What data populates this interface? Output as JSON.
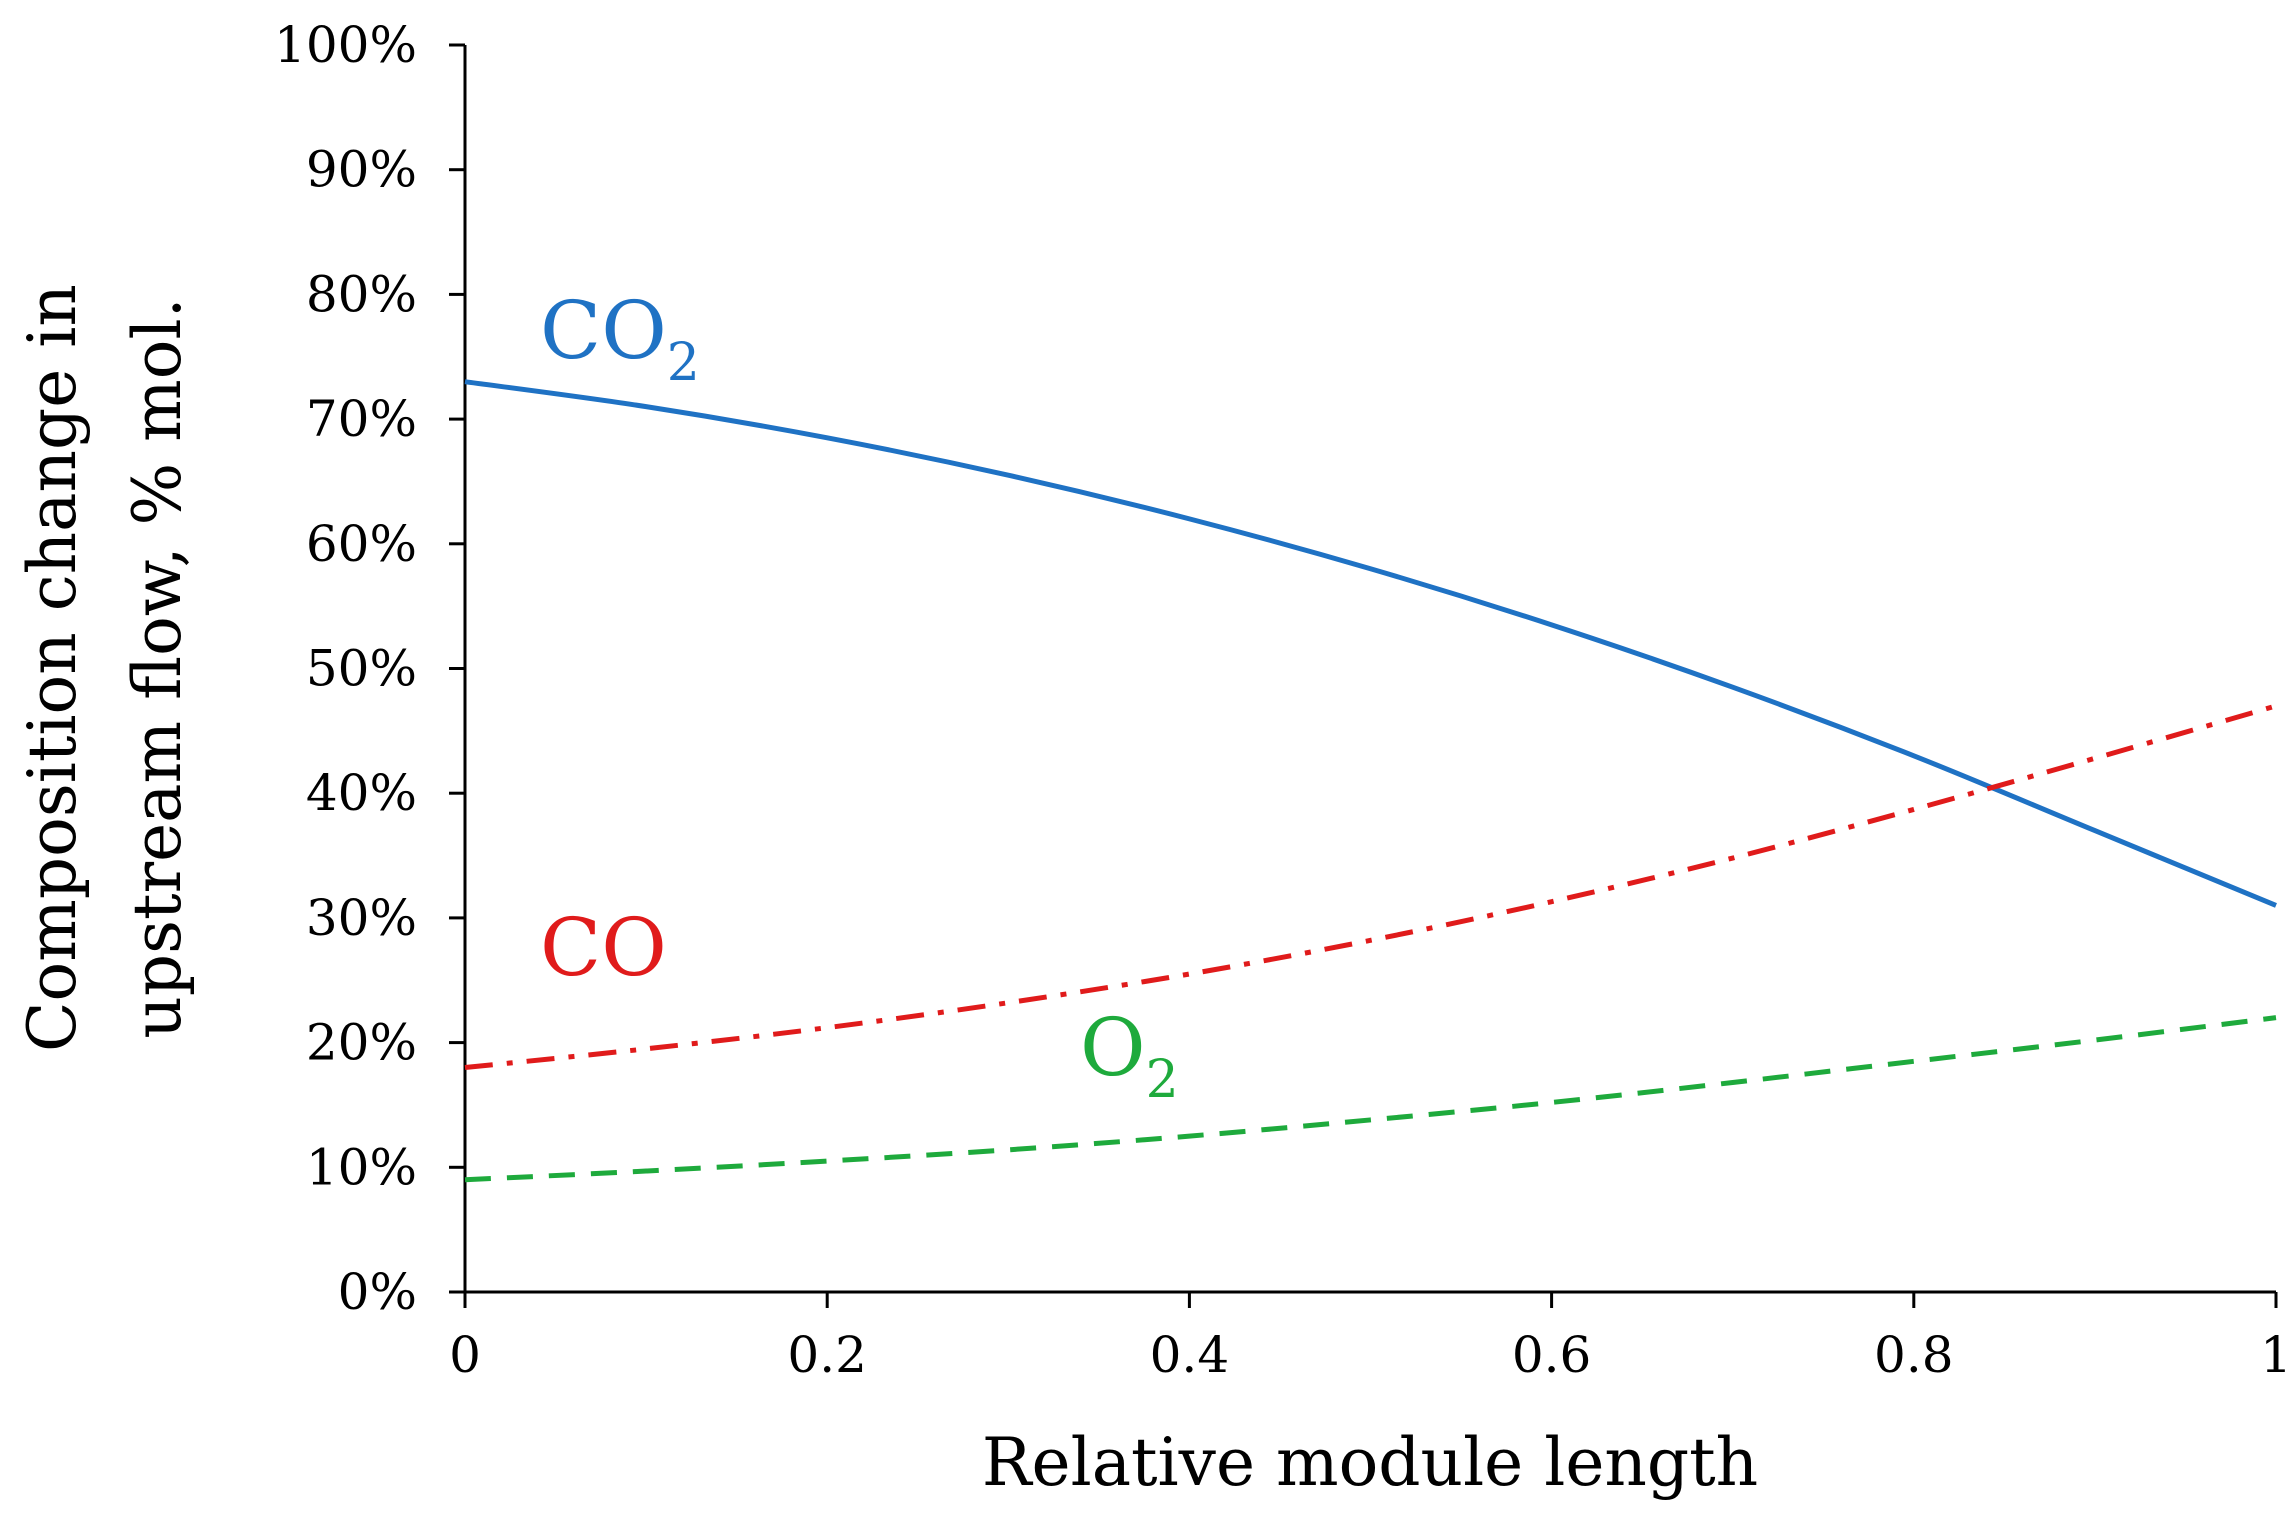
{
  "chart_data": {
    "type": "line",
    "xlabel": "Relative module length",
    "ylabel": [
      "Composition change in",
      "upstream flow, % mol."
    ],
    "xlim": [
      0,
      1
    ],
    "ylim": [
      0,
      1
    ],
    "x_ticks": [
      {
        "value": 0,
        "label": "0"
      },
      {
        "value": 0.2,
        "label": "0.2"
      },
      {
        "value": 0.4,
        "label": "0.4"
      },
      {
        "value": 0.6,
        "label": "0.6"
      },
      {
        "value": 0.8,
        "label": "0.8"
      },
      {
        "value": 1,
        "label": "1"
      }
    ],
    "y_ticks": [
      {
        "value": 0,
        "label": "0%"
      },
      {
        "value": 0.1,
        "label": "10%"
      },
      {
        "value": 0.2,
        "label": "20%"
      },
      {
        "value": 0.3,
        "label": "30%"
      },
      {
        "value": 0.4,
        "label": "40%"
      },
      {
        "value": 0.5,
        "label": "50%"
      },
      {
        "value": 0.6,
        "label": "60%"
      },
      {
        "value": 0.7,
        "label": "70%"
      },
      {
        "value": 0.8,
        "label": "80%"
      },
      {
        "value": 0.9,
        "label": "90%"
      },
      {
        "value": 1,
        "label": "100%"
      }
    ],
    "grid": false,
    "legend": "none",
    "x": [
      0,
      0.1,
      0.2,
      0.3,
      0.4,
      0.5,
      0.6,
      0.7,
      0.8,
      0.9,
      1.0
    ],
    "series": [
      {
        "name": "CO2",
        "label_main": "CO",
        "label_sub": "2",
        "color": "#1f72c4",
        "dash": "solid",
        "values": [
          0.73,
          0.71,
          0.685,
          0.655,
          0.62,
          0.58,
          0.535,
          0.485,
          0.43,
          0.37,
          0.31
        ]
      },
      {
        "name": "CO",
        "label_main": "CO",
        "label_sub": "",
        "color": "#e01b1b",
        "dash": "dashdot",
        "values": [
          0.18,
          0.195,
          0.212,
          0.232,
          0.255,
          0.282,
          0.313,
          0.348,
          0.387,
          0.428,
          0.47
        ]
      },
      {
        "name": "O2",
        "label_main": "O",
        "label_sub": "2",
        "color": "#1eaa3c",
        "dash": "dashed",
        "values": [
          0.09,
          0.097,
          0.105,
          0.114,
          0.125,
          0.138,
          0.152,
          0.168,
          0.185,
          0.202,
          0.22
        ]
      }
    ]
  }
}
